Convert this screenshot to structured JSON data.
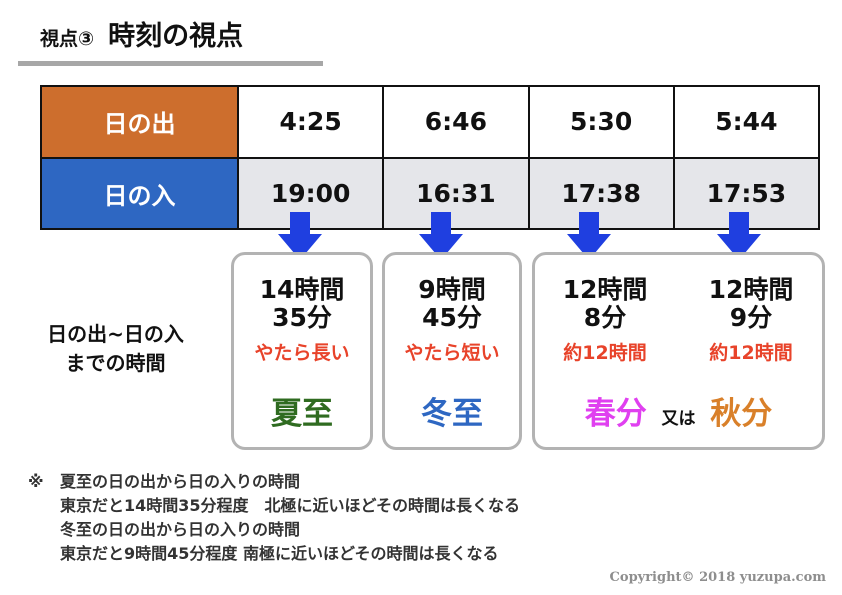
{
  "title": {
    "prefix": "視点③",
    "main": "時刻の視点"
  },
  "table": {
    "rows": [
      {
        "label": "日の出",
        "values": [
          "4:25",
          "6:46",
          "5:30",
          "5:44"
        ]
      },
      {
        "label": "日の入",
        "values": [
          "19:00",
          "16:31",
          "17:38",
          "17:53"
        ]
      }
    ]
  },
  "left_label": {
    "line1": "日の出~日の入",
    "line2": "までの時間"
  },
  "durations": [
    {
      "line1": "14時間",
      "line2": "35分",
      "note": "やたら長い"
    },
    {
      "line1": "9時間",
      "line2": "45分",
      "note": "やたら短い"
    },
    {
      "line1": "12時間",
      "line2": "8分",
      "note": "約12時間"
    },
    {
      "line1": "12時間",
      "line2": "9分",
      "note": "約12時間"
    }
  ],
  "seasons": {
    "summer": "夏至",
    "winter": "冬至",
    "spring": "春分",
    "joiner": "又は",
    "autumn": "秋分"
  },
  "colors": {
    "sunrise_header": "#cd6e2d",
    "sunset_header": "#2e67c2",
    "arrow": "#1f3fe0",
    "summer": "#2f6b20",
    "winter": "#2e67c2",
    "spring": "#e040f0",
    "autumn": "#d9802a",
    "note_red": "#e8432a"
  },
  "footnote": {
    "mark": "※",
    "lines": [
      "夏至の日の出から日の入りの時間",
      "東京だと14時間35分程度　北極に近いほどその時間は長くなる",
      "冬至の日の出から日の入りの時間",
      "東京だと9時間45分程度  南極に近いほどその時間は長くなる"
    ]
  },
  "copyright": "Copyright© 2018 yuzupa.com"
}
